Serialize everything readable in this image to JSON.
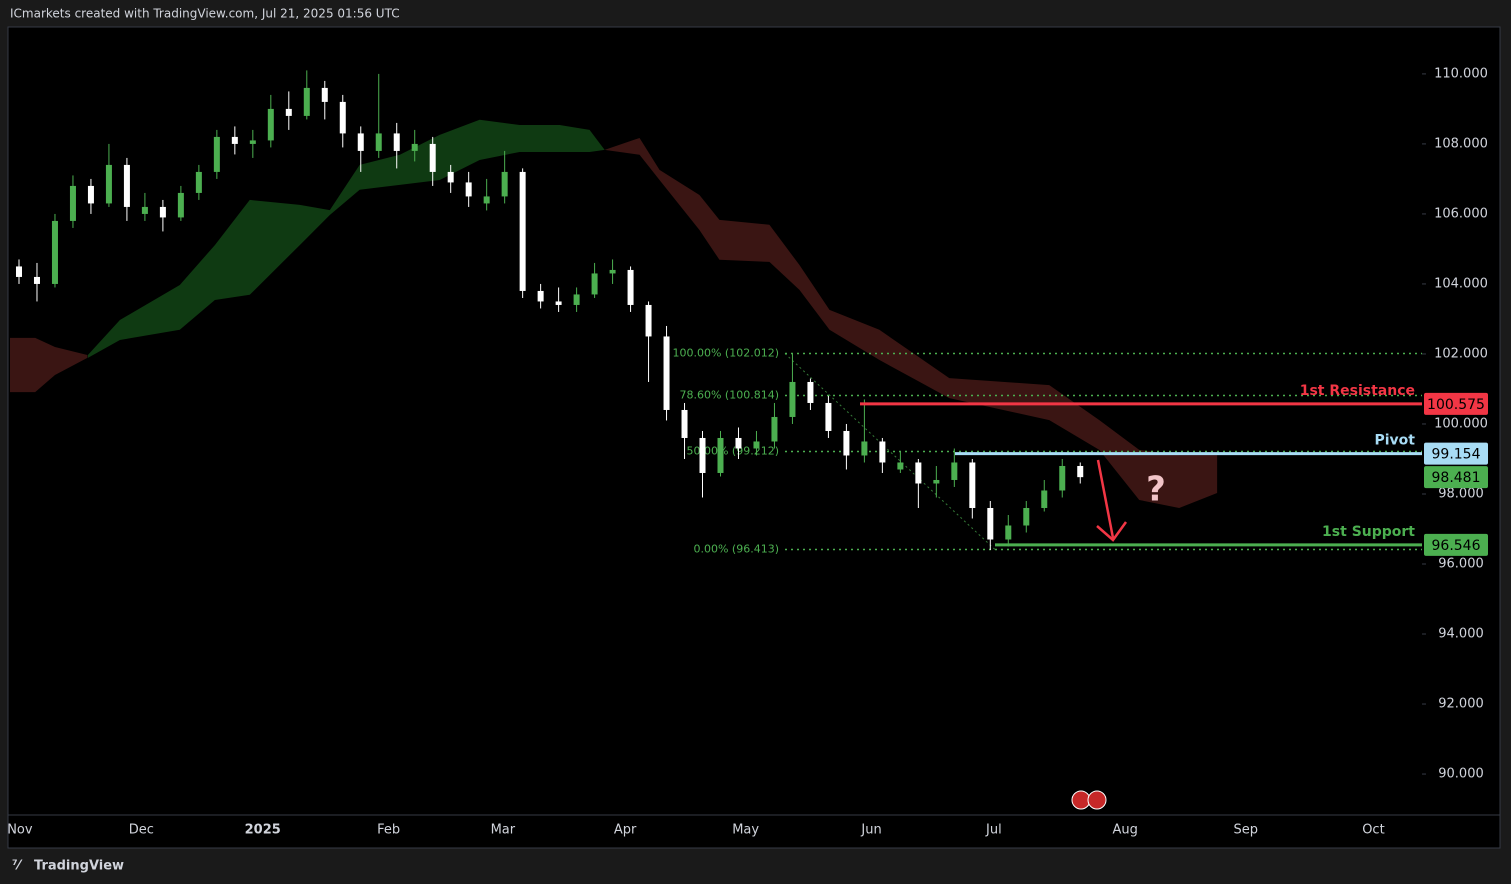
{
  "chart_data": {
    "type": "candlestick",
    "title": "ICmarkets created with TradingView.com, Jul 21, 2025 01:56 UTC",
    "footer": "TradingView",
    "up_color": "#4caf50",
    "down_color": "#ffffff",
    "open": [
      104.5,
      104.2,
      104.0,
      105.8,
      106.8,
      106.3,
      107.4,
      106.0,
      106.2,
      105.9,
      106.6,
      107.2,
      108.2,
      108.0,
      108.1,
      109.0,
      108.8,
      109.6,
      109.2,
      108.3,
      107.8,
      108.3,
      107.8,
      108.0,
      107.2,
      106.9,
      106.3,
      106.5,
      107.2,
      103.8,
      103.5,
      103.4,
      103.7,
      104.3,
      104.4,
      103.4,
      102.5,
      100.4,
      99.6,
      98.6,
      99.6,
      99.3,
      99.5,
      100.2,
      101.2,
      100.6,
      99.8,
      99.1,
      99.5,
      98.7,
      98.9,
      98.3,
      98.4,
      98.9,
      97.6,
      96.7,
      97.1,
      97.6,
      98.1,
      98.8
    ],
    "high": [
      104.7,
      104.6,
      106.0,
      107.1,
      107.0,
      108.0,
      107.6,
      106.6,
      106.4,
      106.8,
      107.4,
      108.4,
      108.5,
      108.4,
      109.4,
      109.5,
      110.1,
      109.8,
      109.4,
      108.5,
      110.0,
      108.6,
      108.4,
      108.2,
      107.4,
      107.2,
      107.0,
      107.8,
      107.3,
      104.0,
      103.9,
      103.9,
      104.6,
      104.7,
      104.5,
      103.5,
      102.8,
      100.6,
      99.8,
      99.8,
      99.9,
      99.8,
      100.6,
      102.0,
      101.3,
      100.8,
      100.0,
      100.7,
      99.6,
      99.2,
      99.0,
      98.8,
      99.3,
      99.0,
      97.8,
      97.4,
      97.8,
      98.4,
      99.0,
      98.9
    ],
    "low": [
      104.0,
      103.5,
      103.9,
      105.6,
      106.0,
      106.2,
      105.8,
      105.8,
      105.5,
      105.8,
      106.4,
      107.0,
      107.7,
      107.6,
      107.9,
      108.4,
      108.7,
      108.7,
      107.9,
      107.2,
      107.6,
      107.3,
      107.5,
      106.8,
      106.6,
      106.2,
      106.1,
      106.3,
      103.6,
      103.3,
      103.2,
      103.2,
      103.6,
      104.0,
      103.2,
      101.2,
      100.1,
      99.0,
      97.9,
      98.5,
      99.0,
      99.1,
      99.3,
      100.0,
      100.4,
      99.6,
      98.7,
      98.9,
      98.6,
      98.6,
      97.6,
      97.9,
      98.2,
      97.3,
      96.4,
      96.5,
      96.9,
      97.5,
      97.9,
      98.3
    ],
    "close": [
      104.2,
      104.0,
      105.8,
      106.8,
      106.3,
      107.4,
      106.2,
      106.2,
      105.9,
      106.6,
      107.2,
      108.2,
      108.0,
      108.1,
      109.0,
      108.8,
      109.6,
      109.2,
      108.3,
      107.8,
      108.3,
      107.8,
      108.0,
      107.2,
      106.9,
      106.5,
      106.5,
      107.2,
      103.8,
      103.5,
      103.4,
      103.7,
      104.3,
      104.4,
      103.4,
      102.5,
      100.4,
      99.6,
      98.6,
      99.6,
      99.3,
      99.5,
      100.2,
      101.2,
      100.6,
      99.8,
      99.1,
      99.5,
      98.9,
      98.9,
      98.3,
      98.4,
      98.9,
      97.6,
      96.7,
      97.1,
      97.6,
      98.1,
      98.8,
      98.481
    ],
    "clouds": [
      {
        "color": "#3a1513",
        "x": [
          0,
          1.4,
          2.5,
          4.3
        ],
        "upper": [
          102.46,
          102.46,
          102.2,
          101.97
        ],
        "lower": [
          100.91,
          100.91,
          101.4,
          101.89
        ]
      },
      {
        "color": "#0f3a12",
        "x": [
          4.33,
          6.11,
          9.44,
          11.39,
          13.33,
          16.11,
          17.78,
          19.44,
          21.67,
          23.89,
          26.11,
          28.33,
          30.56,
          32.22,
          33.06
        ],
        "upper": [
          101.97,
          102.97,
          103.97,
          105.11,
          106.4,
          106.26,
          106.11,
          107.4,
          107.69,
          108.26,
          108.69,
          108.54,
          108.54,
          108.4,
          107.83
        ],
        "lower": [
          101.89,
          102.4,
          102.69,
          103.54,
          103.69,
          105.11,
          105.97,
          106.69,
          106.83,
          106.97,
          107.54,
          107.77,
          107.77,
          107.77,
          107.83
        ]
      },
      {
        "color": "#3a1513",
        "x": [
          33.06,
          35,
          36.11,
          38.33,
          39.44,
          42.22,
          43.89,
          45.56,
          48.33,
          52.22,
          57.78,
          60.56,
          62.78,
          65,
          67.11
        ],
        "upper": [
          107.83,
          108.17,
          107.26,
          106.54,
          105.83,
          105.69,
          104.54,
          103.26,
          102.69,
          101.31,
          101.11,
          100.11,
          99.26,
          99.11,
          99.11
        ],
        "lower": [
          107.83,
          107.69,
          106.97,
          105.54,
          104.69,
          104.63,
          103.83,
          102.69,
          101.83,
          100.74,
          100.11,
          99.26,
          97.83,
          97.6,
          98.03
        ]
      }
    ],
    "fib_levels": [
      {
        "value": 102.012,
        "label": "100.00% (102.012)"
      },
      {
        "value": 100.814,
        "label": "78.60% (100.814)"
      },
      {
        "value": 99.212,
        "label": "50.00% (99.212)"
      },
      {
        "value": 96.413,
        "label": "0.00% (96.413)"
      }
    ],
    "levels": [
      {
        "label": "1st Resistance",
        "value": 100.575,
        "color": "#f23645"
      },
      {
        "label": "Pivot",
        "value": 99.154,
        "color": "#a8dcf5"
      },
      {
        "label": "1st Support",
        "value": 96.546,
        "color": "#4caf50"
      }
    ],
    "annotation": "?",
    "xlim": [
      0,
      78.5
    ],
    "ylim": [
      88.83,
      111.34
    ],
    "xticks": [
      {
        "value": 0.55,
        "label": "Nov"
      },
      {
        "value": 7.3,
        "label": "Dec"
      },
      {
        "value": 14.05,
        "label": "2025"
      },
      {
        "value": 21.05,
        "label": "Feb"
      },
      {
        "value": 27.4,
        "label": "Mar"
      },
      {
        "value": 34.2,
        "label": "Apr"
      },
      {
        "value": 40.9,
        "label": "May"
      },
      {
        "value": 47.9,
        "label": "Jun"
      },
      {
        "value": 54.7,
        "label": "Jul"
      },
      {
        "value": 62,
        "label": "Aug"
      },
      {
        "value": 68.7,
        "label": "Sep"
      },
      {
        "value": 75.8,
        "label": "Oct"
      }
    ],
    "yticks": [
      {
        "value": 90,
        "label": "90.000"
      },
      {
        "value": 92,
        "label": "92.000"
      },
      {
        "value": 94,
        "label": "94.000"
      },
      {
        "value": 96,
        "label": "96.000"
      },
      {
        "value": 98,
        "label": "98.000"
      },
      {
        "value": 100,
        "label": "100.000"
      },
      {
        "value": 102,
        "label": "102.000"
      },
      {
        "value": 104,
        "label": "104.000"
      },
      {
        "value": 106,
        "label": "106.000"
      },
      {
        "value": 108,
        "label": "108.000"
      },
      {
        "value": 110,
        "label": "110.000"
      }
    ]
  }
}
